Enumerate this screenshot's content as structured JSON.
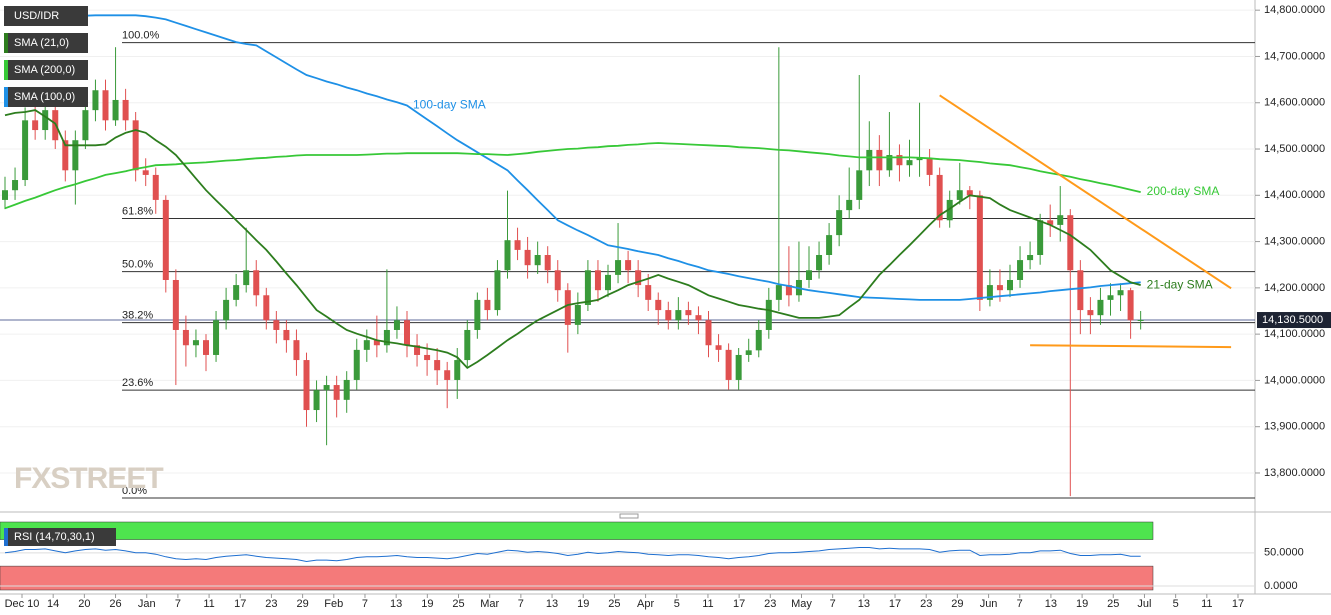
{
  "chart_data": {
    "type": "candlestick",
    "symbol": "USD/IDR",
    "legend": [
      "SMA (21,0)",
      "SMA (200,0)",
      "SMA (100,0)"
    ],
    "legend_colors": [
      "#2d7d1e",
      "#37c837",
      "#1e90e6"
    ],
    "watermark": "FXSTREET",
    "up_color": "#3a9a3a",
    "down_color": "#e05050",
    "ylim": [
      13720,
      14822
    ],
    "yticks": [
      {
        "value": 13800,
        "label": "13,800.0000"
      },
      {
        "value": 13900,
        "label": "13,900.0000"
      },
      {
        "value": 14000,
        "label": "14,000.0000"
      },
      {
        "value": 14100,
        "label": "14,100.0000"
      },
      {
        "value": 14200,
        "label": "14,200.0000"
      },
      {
        "value": 14300,
        "label": "14,300.0000"
      },
      {
        "value": 14400,
        "label": "14,400.0000"
      },
      {
        "value": 14500,
        "label": "14,500.0000"
      },
      {
        "value": 14600,
        "label": "14,600.0000"
      },
      {
        "value": 14700,
        "label": "14,700.0000"
      },
      {
        "value": 14800,
        "label": "14,800.0000"
      }
    ],
    "last_price": {
      "value": 14130.5,
      "label": "14,130.5000"
    },
    "xtick_labels": [
      "Dec 10",
      "14",
      "20",
      "26",
      "Jan",
      "7",
      "11",
      "17",
      "23",
      "29",
      "Feb",
      "7",
      "13",
      "19",
      "25",
      "Mar",
      "7",
      "13",
      "19",
      "25",
      "Apr",
      "5",
      "11",
      "17",
      "23",
      "May",
      "7",
      "13",
      "17",
      "23",
      "29",
      "Jun",
      "7",
      "13",
      "19",
      "25",
      "Jul",
      "5",
      "11",
      "17"
    ],
    "ohlc": [
      [
        14390,
        14440,
        14370,
        14411
      ],
      [
        14411,
        14460,
        14390,
        14433
      ],
      [
        14433,
        14590,
        14420,
        14562
      ],
      [
        14562,
        14600,
        14520,
        14541
      ],
      [
        14541,
        14610,
        14520,
        14584
      ],
      [
        14584,
        14600,
        14500,
        14519
      ],
      [
        14519,
        14540,
        14430,
        14454
      ],
      [
        14454,
        14540,
        14380,
        14519
      ],
      [
        14519,
        14600,
        14500,
        14584
      ],
      [
        14584,
        14650,
        14560,
        14627
      ],
      [
        14627,
        14650,
        14540,
        14562
      ],
      [
        14562,
        14720,
        14550,
        14606
      ],
      [
        14606,
        14630,
        14540,
        14562
      ],
      [
        14562,
        14580,
        14430,
        14454
      ],
      [
        14454,
        14480,
        14420,
        14444
      ],
      [
        14444,
        14460,
        14360,
        14390
      ],
      [
        14390,
        14400,
        14190,
        14217
      ],
      [
        14217,
        14240,
        13990,
        14109
      ],
      [
        14109,
        14140,
        14030,
        14076
      ],
      [
        14076,
        14110,
        14050,
        14087
      ],
      [
        14087,
        14100,
        14020,
        14055
      ],
      [
        14055,
        14150,
        14040,
        14130
      ],
      [
        14130,
        14200,
        14110,
        14174
      ],
      [
        14174,
        14230,
        14160,
        14206
      ],
      [
        14206,
        14330,
        14190,
        14238
      ],
      [
        14238,
        14260,
        14160,
        14184
      ],
      [
        14184,
        14200,
        14110,
        14130
      ],
      [
        14130,
        14150,
        14080,
        14109
      ],
      [
        14109,
        14130,
        14060,
        14087
      ],
      [
        14087,
        14110,
        14010,
        14044
      ],
      [
        14044,
        14060,
        13900,
        13936
      ],
      [
        13936,
        14000,
        13910,
        13979
      ],
      [
        13979,
        14010,
        13860,
        13990
      ],
      [
        13990,
        14010,
        13920,
        13958
      ],
      [
        13958,
        14020,
        13930,
        14001
      ],
      [
        14001,
        14090,
        13980,
        14066
      ],
      [
        14066,
        14110,
        14040,
        14087
      ],
      [
        14087,
        14140,
        14050,
        14076
      ],
      [
        14076,
        14240,
        14060,
        14109
      ],
      [
        14109,
        14160,
        14090,
        14130
      ],
      [
        14130,
        14150,
        14050,
        14076
      ],
      [
        14076,
        14100,
        14030,
        14055
      ],
      [
        14055,
        14080,
        14010,
        14044
      ],
      [
        14044,
        14070,
        13990,
        14022
      ],
      [
        14022,
        14040,
        13940,
        14001
      ],
      [
        14001,
        14070,
        13960,
        14044
      ],
      [
        14044,
        14130,
        14030,
        14109
      ],
      [
        14109,
        14190,
        14090,
        14174
      ],
      [
        14174,
        14200,
        14130,
        14152
      ],
      [
        14152,
        14260,
        14140,
        14238
      ],
      [
        14238,
        14410,
        14220,
        14303
      ],
      [
        14303,
        14330,
        14260,
        14282
      ],
      [
        14282,
        14310,
        14220,
        14249
      ],
      [
        14249,
        14300,
        14230,
        14271
      ],
      [
        14271,
        14290,
        14210,
        14238
      ],
      [
        14238,
        14260,
        14170,
        14195
      ],
      [
        14195,
        14210,
        14060,
        14120
      ],
      [
        14120,
        14190,
        14100,
        14163
      ],
      [
        14163,
        14260,
        14150,
        14238
      ],
      [
        14238,
        14260,
        14170,
        14195
      ],
      [
        14195,
        14250,
        14180,
        14228
      ],
      [
        14228,
        14340,
        14210,
        14260
      ],
      [
        14260,
        14280,
        14210,
        14238
      ],
      [
        14238,
        14260,
        14180,
        14206
      ],
      [
        14206,
        14230,
        14150,
        14174
      ],
      [
        14174,
        14190,
        14120,
        14152
      ],
      [
        14152,
        14170,
        14110,
        14130
      ],
      [
        14130,
        14180,
        14110,
        14152
      ],
      [
        14152,
        14170,
        14120,
        14141
      ],
      [
        14141,
        14160,
        14100,
        14130
      ],
      [
        14130,
        14150,
        14050,
        14076
      ],
      [
        14076,
        14100,
        14040,
        14066
      ],
      [
        14066,
        14080,
        13980,
        14001
      ],
      [
        14001,
        14070,
        13980,
        14055
      ],
      [
        14055,
        14090,
        14040,
        14065
      ],
      [
        14065,
        14130,
        14050,
        14109
      ],
      [
        14109,
        14200,
        14090,
        14174
      ],
      [
        14174,
        14720,
        14150,
        14206
      ],
      [
        14206,
        14290,
        14160,
        14184
      ],
      [
        14184,
        14300,
        14170,
        14217
      ],
      [
        14217,
        14290,
        14200,
        14238
      ],
      [
        14238,
        14300,
        14220,
        14271
      ],
      [
        14271,
        14340,
        14250,
        14314
      ],
      [
        14314,
        14400,
        14290,
        14368
      ],
      [
        14368,
        14460,
        14350,
        14390
      ],
      [
        14390,
        14660,
        14370,
        14454
      ],
      [
        14454,
        14560,
        14420,
        14498
      ],
      [
        14498,
        14530,
        14420,
        14454
      ],
      [
        14454,
        14580,
        14440,
        14487
      ],
      [
        14487,
        14510,
        14430,
        14465
      ],
      [
        14465,
        14520,
        14440,
        14476
      ],
      [
        14476,
        14600,
        14440,
        14480
      ],
      [
        14480,
        14500,
        14420,
        14444
      ],
      [
        14444,
        14460,
        14330,
        14346
      ],
      [
        14346,
        14410,
        14330,
        14390
      ],
      [
        14390,
        14470,
        14380,
        14411
      ],
      [
        14411,
        14420,
        14370,
        14400
      ],
      [
        14400,
        14410,
        14150,
        14174
      ],
      [
        14174,
        14240,
        14160,
        14206
      ],
      [
        14206,
        14240,
        14170,
        14195
      ],
      [
        14195,
        14250,
        14180,
        14217
      ],
      [
        14217,
        14290,
        14200,
        14260
      ],
      [
        14260,
        14300,
        14240,
        14271
      ],
      [
        14271,
        14360,
        14250,
        14346
      ],
      [
        14346,
        14380,
        14310,
        14336
      ],
      [
        14336,
        14420,
        14300,
        14357
      ],
      [
        14357,
        14370,
        13750,
        14238
      ],
      [
        14238,
        14260,
        14100,
        14152
      ],
      [
        14152,
        14180,
        14100,
        14141
      ],
      [
        14141,
        14200,
        14120,
        14174
      ],
      [
        14174,
        14210,
        14140,
        14184
      ],
      [
        14184,
        14210,
        14150,
        14195
      ],
      [
        14195,
        14200,
        14090,
        14130
      ],
      [
        14130,
        14150,
        14110,
        14130.5
      ]
    ],
    "series": [
      {
        "name": "100-day SMA",
        "color": "#1e90e6",
        "label_at": 40,
        "values": [
          14774,
          14776,
          14778,
          14780,
          14782,
          14784,
          14786,
          14787,
          14788,
          14789,
          14789,
          14789,
          14789,
          14789,
          14787,
          14784,
          14780,
          14773,
          14766,
          14759,
          14752,
          14745,
          14738,
          14731,
          14727,
          14724,
          14711,
          14698,
          14685,
          14672,
          14660,
          14653,
          14646,
          14640,
          14633,
          14627,
          14620,
          14614,
          14607,
          14601,
          14594,
          14579,
          14564,
          14549,
          14534,
          14519,
          14506,
          14493,
          14480,
          14467,
          14454,
          14432,
          14411,
          14389,
          14368,
          14346,
          14335,
          14324,
          14314,
          14303,
          14292,
          14288,
          14284,
          14279,
          14275,
          14271,
          14264,
          14258,
          14251,
          14245,
          14238,
          14234,
          14230,
          14225,
          14221,
          14217,
          14213,
          14208,
          14204,
          14199,
          14195,
          14192,
          14189,
          14186,
          14183,
          14180,
          14179,
          14178,
          14177,
          14176,
          14175,
          14174,
          14174,
          14174,
          14174,
          14174,
          14176,
          14178,
          14180,
          14182,
          14184,
          14186,
          14188,
          14190,
          14193,
          14195,
          14197,
          14199,
          14201,
          14204,
          14206,
          14208,
          14210,
          14212
        ]
      },
      {
        "name": "200-day SMA",
        "color": "#37c837",
        "label_at": 113,
        "values": [
          14372,
          14380,
          14388,
          14395,
          14403,
          14411,
          14418,
          14424,
          14431,
          14437,
          14444,
          14448,
          14452,
          14457,
          14461,
          14465,
          14466,
          14467,
          14469,
          14470,
          14471,
          14473,
          14475,
          14476,
          14478,
          14480,
          14481,
          14483,
          14484,
          14486,
          14487,
          14487,
          14487,
          14487,
          14487,
          14487,
          14488,
          14489,
          14490,
          14490,
          14491,
          14491,
          14491,
          14491,
          14491,
          14491,
          14490,
          14489,
          14489,
          14488,
          14487,
          14489,
          14491,
          14494,
          14496,
          14498,
          14500,
          14501,
          14503,
          14504,
          14506,
          14507,
          14509,
          14510,
          14512,
          14513,
          14512,
          14511,
          14510,
          14509,
          14508,
          14507,
          14506,
          14504,
          14503,
          14502,
          14500,
          14498,
          14497,
          14495,
          14493,
          14491,
          14489,
          14486,
          14484,
          14482,
          14482,
          14482,
          14482,
          14482,
          14482,
          14481,
          14480,
          14478,
          14477,
          14476,
          14474,
          14472,
          14469,
          14467,
          14465,
          14461,
          14457,
          14452,
          14448,
          14444,
          14440,
          14435,
          14431,
          14426,
          14422,
          14417,
          14412,
          14407
        ]
      },
      {
        "name": "21-day SMA",
        "color": "#2d7d1e",
        "label_at": 113,
        "values": [
          14573,
          14578,
          14580,
          14584,
          14570,
          14555,
          14508,
          14508,
          14508,
          14508,
          14510,
          14525,
          14535,
          14541,
          14535,
          14519,
          14505,
          14487,
          14462,
          14436,
          14411,
          14389,
          14368,
          14346,
          14325,
          14303,
          14282,
          14257,
          14231,
          14206,
          14179,
          14152,
          14138,
          14123,
          14109,
          14101,
          14094,
          14087,
          14083,
          14080,
          14076,
          14073,
          14069,
          14065,
          14060,
          14050,
          14027,
          14040,
          14055,
          14071,
          14087,
          14101,
          14116,
          14130,
          14141,
          14152,
          14163,
          14167,
          14170,
          14174,
          14185,
          14195,
          14206,
          14213,
          14220,
          14228,
          14220,
          14213,
          14206,
          14195,
          14184,
          14177,
          14170,
          14163,
          14159,
          14155,
          14152,
          14146,
          14141,
          14135,
          14135,
          14135,
          14138,
          14141,
          14158,
          14174,
          14201,
          14228,
          14249,
          14271,
          14292,
          14314,
          14336,
          14357,
          14371,
          14386,
          14400,
          14397,
          14394,
          14380,
          14368,
          14360,
          14352,
          14344,
          14336,
          14325,
          14314,
          14298,
          14282,
          14260,
          14238,
          14225,
          14212,
          14206
        ]
      }
    ],
    "fibonacci": [
      {
        "label": "100.0%",
        "value": 14730
      },
      {
        "label": "61.8%",
        "value": 14350
      },
      {
        "label": "50.0%",
        "value": 14235
      },
      {
        "label": "38.2%",
        "value": 14125
      },
      {
        "label": "23.6%",
        "value": 13979
      },
      {
        "label": "0.0%",
        "value": 13746
      }
    ],
    "trendlines": [
      {
        "color": "#ff9a1a",
        "from": {
          "index": 93,
          "price": 14616
        },
        "to": {
          "index": 122,
          "price": 14199
        }
      },
      {
        "color": "#ff9a1a",
        "from": {
          "index": 102,
          "price": 14076
        },
        "to": {
          "index": 122,
          "price": 14072
        }
      }
    ],
    "rsi": {
      "label": "RSI (14,70,30,1)",
      "color": "#1e6fd0",
      "ylim": [
        -6,
        101
      ],
      "overbought": 70,
      "oversold": 30,
      "yticks": [
        {
          "value": 0,
          "label": "0.0000"
        },
        {
          "value": 50,
          "label": "50.0000"
        }
      ],
      "values": [
        50,
        52,
        55,
        55,
        56,
        53,
        50,
        53,
        55,
        56,
        54,
        55,
        53,
        50,
        50,
        48,
        44,
        41,
        40,
        41,
        40,
        43,
        45,
        46,
        47,
        45,
        43,
        42,
        41,
        40,
        37,
        39,
        39,
        38,
        40,
        43,
        44,
        44,
        45,
        46,
        44,
        43,
        43,
        42,
        41,
        43,
        46,
        49,
        48,
        51,
        54,
        53,
        51,
        52,
        51,
        49,
        46,
        48,
        51,
        49,
        50,
        52,
        51,
        50,
        48,
        47,
        46,
        47,
        47,
        46,
        44,
        43,
        41,
        43,
        44,
        46,
        49,
        50,
        50,
        51,
        52,
        53,
        55,
        56,
        57,
        58,
        58,
        56,
        57,
        56,
        56,
        56,
        55,
        51,
        53,
        54,
        54,
        46,
        47,
        47,
        48,
        50,
        50,
        53,
        53,
        54,
        49,
        46,
        46,
        47,
        47,
        48,
        45,
        45
      ]
    }
  }
}
